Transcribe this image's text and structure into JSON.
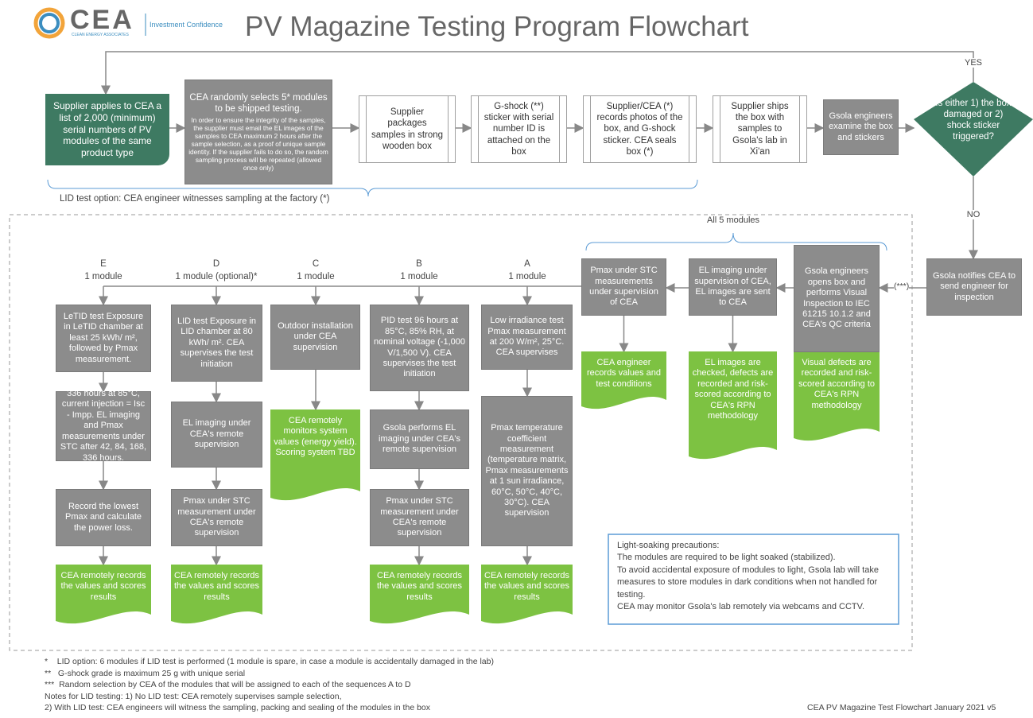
{
  "header": {
    "logo": "CEA",
    "logo_sub": "CLEAN ENERGY ASSOCIATES",
    "tagline": "Investment Confidence",
    "title": "PV Magazine Testing Program Flowchart"
  },
  "intake": {
    "steps": [
      "Supplier applies to CEA a list of 2,000 (minimum) serial numbers of PV modules of the same product type",
      "CEA randomly selects 5* modules to be shipped testing.",
      "Supplier packages samples in strong wooden box",
      "G-shock (**) sticker with serial number ID is attached on the box",
      "Supplier/CEA (*) records photos of the box, and G-shock sticker. CEA seals box (*)",
      "Supplier ships the box with samples to Gsola's lab in Xi'an",
      "Gsola engineers examine the box and stickers"
    ],
    "sampling_note": "In order to ensure the integrity of the samples, the supplier must email the EL images of the samples to CEA maximum 2 hours after the sample selection, as a proof of unique sample identity. If the supplier fails to do so, the random sampling process will be repeated (allowed once only)",
    "lid_option": "LID test option: CEA engineer witnesses sampling at the factory (*)",
    "decision": "Is either 1) the box damaged or 2) shock sticker triggered?",
    "yes": "YES",
    "no": "NO",
    "notify": "Gsola notifies CEA to send engineer for inspection",
    "random": "(***)"
  },
  "inspection": {
    "label": "All 5 modules",
    "steps": [
      {
        "action": "Gsola engineers opens box and performs Visual Inspection to IEC 61215 10.1.2 and CEA's QC criteria",
        "result": "Visual defects are recorded and risk-scored according to CEA's RPN methodology"
      },
      {
        "action": "EL imaging under supervision of CEA, EL images are sent to CEA",
        "result": "EL images are checked, defects are recorded and risk-scored according to CEA's RPN methodology"
      },
      {
        "action": "Pmax under STC measurements under supervision of CEA",
        "result": "CEA engineer records values and test conditions"
      }
    ]
  },
  "sequences": [
    {
      "letter": "E",
      "count": "1 module",
      "steps": [
        "LeTID test Exposure in LeTID chamber at least 25 kWh/ m², followed by Pmax measurement.",
        "336 hours at 85°C, current injection = Isc - Impp. EL imaging and Pmax measurements under STC after 42, 84, 168, 336 hours.",
        "Record the lowest Pmax and calculate the power loss."
      ],
      "result": "CEA remotely records the values and scores results"
    },
    {
      "letter": "D",
      "count": "1 module (optional)*",
      "steps": [
        "LID test Exposure in LID chamber at 80 kWh/ m². CEA supervises the test initiation",
        "EL imaging under CEA's remote supervision",
        "Pmax under STC measurement under CEA's remote supervision"
      ],
      "result": "CEA remotely records the values and scores results"
    },
    {
      "letter": "C",
      "count": "1 module",
      "steps": [
        "Outdoor installation under CEA supervision"
      ],
      "result": "CEA remotely monitors system values (energy yield). Scoring system TBD"
    },
    {
      "letter": "B",
      "count": "1 module",
      "steps": [
        "PID test 96 hours at 85°C, 85% RH, at nominal voltage (-1,000 V/1,500 V). CEA supervises the test initiation",
        "Gsola performs EL imaging under CEA's remote supervision",
        "Pmax under STC measurement under CEA's remote supervision"
      ],
      "result": "CEA remotely records the values and scores results"
    },
    {
      "letter": "A",
      "count": "1 module",
      "steps": [
        "Low irradiance test Pmax measurement at 200 W/m², 25°C. CEA supervises",
        "Pmax temperature coefficient measurement (temperature matrix, Pmax measurements at 1 sun irradiance, 60°C, 50°C, 40°C, 30°C). CEA supervision"
      ],
      "result": "CEA remotely records the values and scores results"
    }
  ],
  "precautions": {
    "title": "Light-soaking precautions:",
    "lines": [
      "The modules are required to be light soaked (stabilized).",
      "To avoid accidental exposure of modules to light, Gsola lab will take measures to store modules in dark conditions when not handled for testing.",
      "CEA may monitor Gsola's lab remotely via webcams and CCTV."
    ]
  },
  "footnotes": [
    "*    LID option: 6 modules if LID test is performed (1 module is spare, in case a module is accidentally damaged in the lab)",
    "**   G-shock grade is maximum 25 g with unique serial",
    "***  Random selection by CEA of the modules that will be assigned to each of the sequences A to D",
    "Notes for LID testing: 1) No LID test: CEA remotely supervises sample selection,",
    "2) With LID test: CEA engineers will witness the sampling, packing and sealing of the modules in the box"
  ],
  "footer": "CEA PV Magazine Test Flowchart January 2021 v5"
}
